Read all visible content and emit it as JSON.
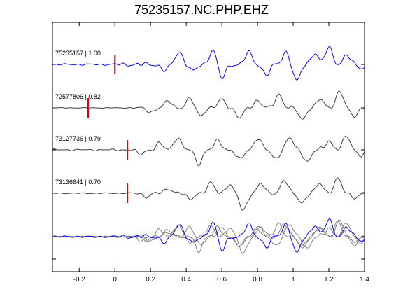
{
  "chart_data": {
    "type": "line",
    "title": "75235157.NC.PHP.EHZ",
    "xlabel": "",
    "ylabel": "",
    "xlim": [
      -0.35,
      1.4
    ],
    "xticks": [
      -0.2,
      0,
      0.2,
      0.4,
      0.6,
      0.8,
      1,
      1.2,
      1.4
    ],
    "xtick_labels": [
      "-0.2",
      "0",
      "0.2",
      "0.4",
      "0.6",
      "0.8",
      "1",
      "1.2",
      "1.4"
    ],
    "grid": false,
    "legend": "none",
    "colors": {
      "reference": "#0000ff",
      "other": "#3c3c3c",
      "stack_other": "#808080",
      "pick": "#e00000"
    },
    "traces": [
      {
        "label": "75235157 | 1.00",
        "color": "#0000ff",
        "pick_time": 0.0,
        "waveform": {
          "onset": -0.05,
          "seed": 1.0,
          "pre_noise": 0.05,
          "peaks": [
            [
              0.28,
              -0.35
            ],
            [
              0.36,
              0.75
            ],
            [
              0.44,
              -0.4
            ],
            [
              0.55,
              0.9
            ],
            [
              0.6,
              -0.85
            ],
            [
              0.75,
              0.7
            ],
            [
              0.85,
              -0.6
            ],
            [
              0.96,
              0.75
            ],
            [
              1.02,
              -1.0
            ],
            [
              1.12,
              0.7
            ],
            [
              1.2,
              1.0
            ],
            [
              1.3,
              0.55
            ],
            [
              1.38,
              -0.2
            ]
          ]
        }
      },
      {
        "label": "72577806 | 0.82",
        "color": "#3c3c3c",
        "pick_time": -0.15,
        "waveform": {
          "onset": 0.05,
          "seed": 2.0,
          "pre_noise": 0.02,
          "peaks": [
            [
              0.2,
              -0.25
            ],
            [
              0.3,
              0.4
            ],
            [
              0.42,
              0.55
            ],
            [
              0.48,
              -0.45
            ],
            [
              0.6,
              0.5
            ],
            [
              0.7,
              -0.6
            ],
            [
              0.8,
              0.45
            ],
            [
              0.92,
              0.8
            ],
            [
              1.05,
              -0.7
            ],
            [
              1.15,
              0.5
            ],
            [
              1.26,
              1.0
            ],
            [
              1.34,
              -0.5
            ]
          ]
        }
      },
      {
        "label": "73127736 | 0.79",
        "color": "#3c3c3c",
        "pick_time": 0.07,
        "waveform": {
          "onset": 0.0,
          "seed": 3.0,
          "pre_noise": 0.05,
          "peaks": [
            [
              0.14,
              -0.25
            ],
            [
              0.25,
              0.35
            ],
            [
              0.35,
              0.75
            ],
            [
              0.47,
              -0.8
            ],
            [
              0.58,
              0.55
            ],
            [
              0.7,
              -0.6
            ],
            [
              0.8,
              0.7
            ],
            [
              0.9,
              -0.5
            ],
            [
              0.98,
              0.7
            ],
            [
              1.08,
              -0.7
            ],
            [
              1.2,
              0.55
            ],
            [
              1.3,
              0.8
            ],
            [
              1.38,
              -0.3
            ]
          ]
        }
      },
      {
        "label": "73136641 | 0.70",
        "color": "#3c3c3c",
        "pick_time": 0.07,
        "waveform": {
          "onset": 0.05,
          "seed": 4.0,
          "pre_noise": 0.03,
          "peaks": [
            [
              0.18,
              -0.2
            ],
            [
              0.3,
              0.3
            ],
            [
              0.42,
              -0.35
            ],
            [
              0.54,
              0.6
            ],
            [
              0.64,
              0.5
            ],
            [
              0.72,
              -1.0
            ],
            [
              0.82,
              0.55
            ],
            [
              0.95,
              0.75
            ],
            [
              1.05,
              -0.55
            ],
            [
              1.15,
              0.6
            ],
            [
              1.25,
              0.85
            ],
            [
              1.35,
              -0.25
            ]
          ]
        }
      }
    ]
  }
}
